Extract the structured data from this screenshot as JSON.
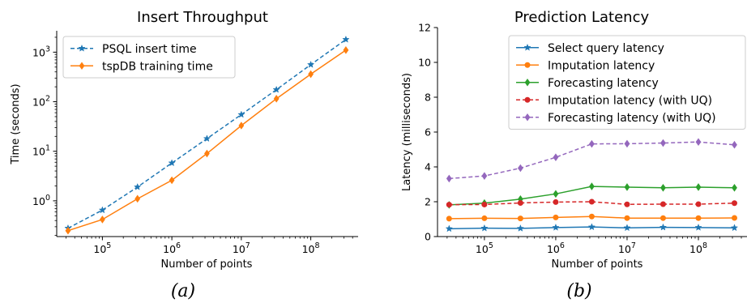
{
  "chart_data": [
    {
      "type": "line",
      "title": "Insert Throughput",
      "xlabel": "Number of points",
      "ylabel": "Time (seconds)",
      "caption": "(a)",
      "xscale": "log",
      "yscale": "log",
      "xlim": [
        22000,
        480000000
      ],
      "ylim": [
        0.19,
        2700
      ],
      "xticks": [
        {
          "value": 100000,
          "base": "10",
          "exp": "5"
        },
        {
          "value": 1000000,
          "base": "10",
          "exp": "6"
        },
        {
          "value": 10000000,
          "base": "10",
          "exp": "7"
        },
        {
          "value": 100000000,
          "base": "10",
          "exp": "8"
        }
      ],
      "yticks": [
        {
          "value": 1,
          "base": "10",
          "exp": "0"
        },
        {
          "value": 10,
          "base": "10",
          "exp": "1"
        },
        {
          "value": 100,
          "base": "10",
          "exp": "2"
        },
        {
          "value": 1000,
          "base": "10",
          "exp": "3"
        }
      ],
      "x": [
        32000,
        100000,
        320000,
        1000000,
        3200000,
        10000000,
        32000000,
        100000000,
        320000000
      ],
      "legend_position": "upper-left",
      "series": [
        {
          "name": "PSQL insert time",
          "values": [
            0.28,
            0.65,
            1.9,
            5.8,
            18,
            55,
            175,
            560,
            1800
          ],
          "color": "#1f77b4",
          "marker": "star",
          "dash": true
        },
        {
          "name": "tspDB training time",
          "values": [
            0.25,
            0.42,
            1.1,
            2.6,
            9,
            33,
            115,
            360,
            1100
          ],
          "color": "#ff7f0e",
          "marker": "diamond",
          "dash": false
        }
      ]
    },
    {
      "type": "line",
      "title": "Prediction Latency",
      "xlabel": "Number of points",
      "ylabel": "Latency (milliseconds)",
      "caption": "(b)",
      "xscale": "log",
      "yscale": "linear",
      "xlim": [
        22000,
        480000000
      ],
      "ylim": [
        0,
        12
      ],
      "xticks": [
        {
          "value": 100000,
          "base": "10",
          "exp": "5"
        },
        {
          "value": 1000000,
          "base": "10",
          "exp": "6"
        },
        {
          "value": 10000000,
          "base": "10",
          "exp": "7"
        },
        {
          "value": 100000000,
          "base": "10",
          "exp": "8"
        }
      ],
      "yticks": [
        {
          "value": 0,
          "label": "0"
        },
        {
          "value": 2,
          "label": "2"
        },
        {
          "value": 4,
          "label": "4"
        },
        {
          "value": 6,
          "label": "6"
        },
        {
          "value": 8,
          "label": "8"
        },
        {
          "value": 10,
          "label": "10"
        },
        {
          "value": 12,
          "label": "12"
        }
      ],
      "x": [
        32000,
        100000,
        320000,
        1000000,
        3200000,
        10000000,
        32000000,
        100000000,
        320000000
      ],
      "legend_position": "upper-right",
      "series": [
        {
          "name": "Select query latency",
          "values": [
            0.45,
            0.48,
            0.47,
            0.52,
            0.55,
            0.5,
            0.53,
            0.52,
            0.5
          ],
          "color": "#1f77b4",
          "marker": "star",
          "dash": false
        },
        {
          "name": "Imputation latency",
          "values": [
            1.03,
            1.05,
            1.04,
            1.1,
            1.15,
            1.06,
            1.06,
            1.06,
            1.07
          ],
          "color": "#ff7f0e",
          "marker": "circle",
          "dash": false
        },
        {
          "name": "Forecasting latency",
          "values": [
            1.82,
            1.92,
            2.15,
            2.45,
            2.88,
            2.84,
            2.8,
            2.84,
            2.8
          ],
          "color": "#2ca02c",
          "marker": "diamond",
          "dash": false
        },
        {
          "name": "Imputation latency (with UQ)",
          "values": [
            1.83,
            1.84,
            1.93,
            1.98,
            2.0,
            1.85,
            1.86,
            1.86,
            1.92
          ],
          "color": "#d62728",
          "marker": "circle",
          "dash": true
        },
        {
          "name": "Forecasting latency (with UQ)",
          "values": [
            3.33,
            3.48,
            3.93,
            4.55,
            5.32,
            5.33,
            5.37,
            5.43,
            5.27
          ],
          "color": "#9467bd",
          "marker": "diamond",
          "dash": true
        }
      ]
    }
  ]
}
